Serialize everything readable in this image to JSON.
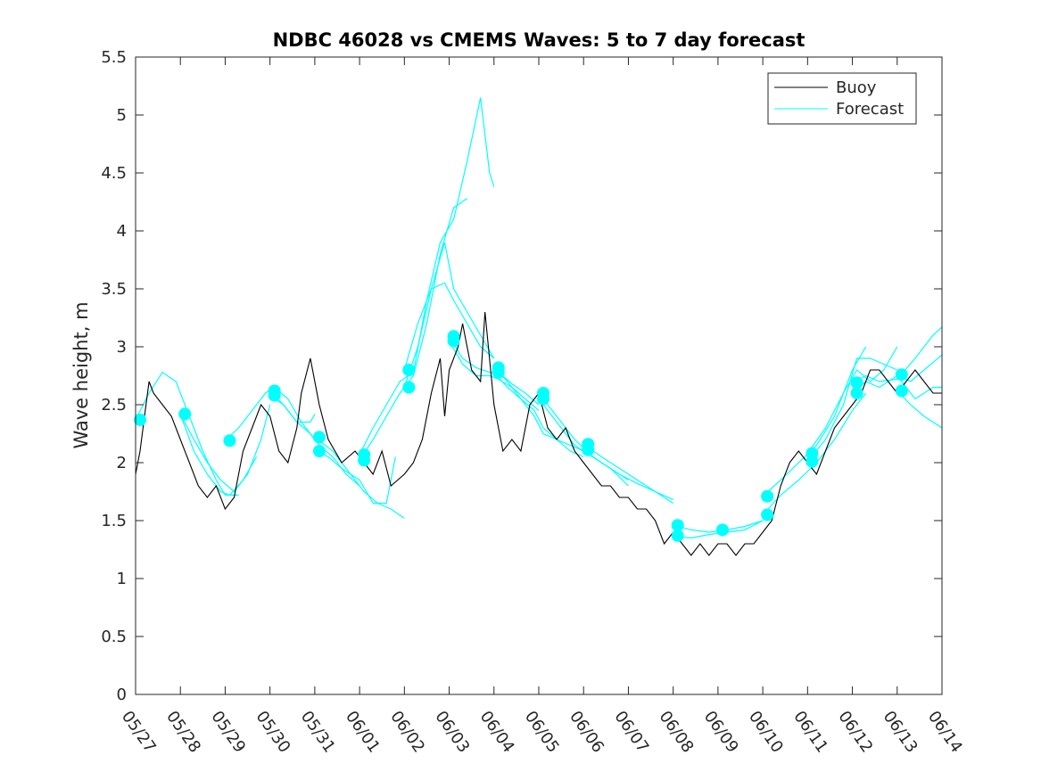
{
  "chart_data": {
    "type": "line",
    "title": "NDBC 46028 vs CMEMS Waves: 5 to 7 day forecast",
    "xlabel": "",
    "ylabel": "Wave height, m",
    "x_unit": "date",
    "xlim": [
      "05/27",
      "06/14"
    ],
    "ylim": [
      0,
      5.5
    ],
    "yticks": [
      "0",
      "0.5",
      "1",
      "1.5",
      "2",
      "2.5",
      "3",
      "3.5",
      "4",
      "4.5",
      "5",
      "5.5"
    ],
    "xticks": [
      "05/27",
      "05/28",
      "05/29",
      "05/30",
      "05/31",
      "06/01",
      "06/02",
      "06/03",
      "06/04",
      "06/05",
      "06/06",
      "06/07",
      "06/08",
      "06/09",
      "06/10",
      "06/11",
      "06/12",
      "06/13",
      "06/14"
    ],
    "grid": false,
    "legend": {
      "position": "top-right",
      "entries": [
        "Buoy",
        "Forecast"
      ]
    },
    "colors": {
      "buoy": "#000000",
      "forecast": "#00ffff",
      "axes": "#262626"
    },
    "series": [
      {
        "name": "Buoy",
        "x_days": [
          0,
          0.1,
          0.2,
          0.3,
          0.4,
          0.6,
          0.8,
          1.0,
          1.2,
          1.4,
          1.6,
          1.8,
          2.0,
          2.2,
          2.4,
          2.6,
          2.8,
          3.0,
          3.2,
          3.4,
          3.6,
          3.7,
          3.9,
          4.1,
          4.3,
          4.6,
          4.9,
          5.1,
          5.3,
          5.5,
          5.7,
          6.0,
          6.2,
          6.4,
          6.6,
          6.8,
          6.9,
          7.0,
          7.2,
          7.3,
          7.5,
          7.7,
          7.8,
          8.0,
          8.2,
          8.4,
          8.6,
          8.8,
          9.0,
          9.2,
          9.4,
          9.6,
          9.8,
          10.0,
          10.2,
          10.4,
          10.6,
          10.8,
          11.0,
          11.2,
          11.4,
          11.6,
          11.8,
          12.0,
          12.2,
          12.4,
          12.6,
          12.8,
          13.0,
          13.2,
          13.4,
          13.6,
          13.8,
          14.0,
          14.2,
          14.4,
          14.6,
          14.8,
          15.0,
          15.2,
          15.4,
          15.6,
          15.8,
          16.0,
          16.2,
          16.4,
          16.6,
          16.8,
          17.0,
          17.2,
          17.4,
          17.6,
          17.8,
          18.0
        ],
        "values": [
          1.9,
          2.1,
          2.4,
          2.7,
          2.6,
          2.5,
          2.4,
          2.2,
          2.0,
          1.8,
          1.7,
          1.8,
          1.6,
          1.7,
          2.1,
          2.3,
          2.5,
          2.4,
          2.1,
          2.0,
          2.3,
          2.6,
          2.9,
          2.5,
          2.2,
          2.0,
          2.1,
          2.0,
          1.9,
          2.1,
          1.8,
          1.9,
          2.0,
          2.2,
          2.6,
          2.9,
          2.4,
          2.8,
          3.0,
          3.2,
          2.8,
          2.7,
          3.3,
          2.5,
          2.1,
          2.2,
          2.1,
          2.5,
          2.6,
          2.3,
          2.2,
          2.3,
          2.1,
          2.0,
          1.9,
          1.8,
          1.8,
          1.7,
          1.7,
          1.6,
          1.6,
          1.5,
          1.3,
          1.4,
          1.3,
          1.2,
          1.3,
          1.2,
          1.3,
          1.3,
          1.2,
          1.3,
          1.3,
          1.4,
          1.5,
          1.8,
          2.0,
          2.1,
          2.0,
          1.9,
          2.1,
          2.3,
          2.4,
          2.5,
          2.6,
          2.8,
          2.8,
          2.7,
          2.6,
          2.7,
          2.8,
          2.7,
          2.6,
          2.6
        ]
      },
      {
        "name": "Forecast",
        "lines": [
          {
            "x_days": [
              0.0,
              0.3,
              0.6,
              0.9,
              1.2,
              1.5,
              1.8,
              2.0,
              2.3
            ],
            "values": [
              2.37,
              2.6,
              2.78,
              2.7,
              2.4,
              2.1,
              1.85,
              1.72,
              1.72
            ]
          },
          {
            "x_days": [
              1.0,
              1.3,
              1.6,
              1.9,
              2.2,
              2.5,
              2.8,
              3.0
            ],
            "values": [
              2.42,
              2.2,
              2.0,
              1.85,
              1.75,
              1.9,
              2.2,
              2.5
            ]
          },
          {
            "x_days": [
              1.0,
              1.3,
              1.6,
              1.9,
              2.1,
              2.4,
              2.7
            ],
            "values": [
              2.42,
              2.1,
              1.9,
              1.75,
              1.72,
              1.85,
              2.05
            ]
          },
          {
            "x_days": [
              2.0,
              2.3,
              2.6,
              2.9,
              3.1,
              3.4,
              3.7,
              4.0
            ],
            "values": [
              2.19,
              2.3,
              2.45,
              2.6,
              2.65,
              2.55,
              2.35,
              2.2
            ]
          },
          {
            "x_days": [
              3.0,
              3.3,
              3.6,
              3.9,
              4.1,
              4.4,
              4.7,
              5.0
            ],
            "values": [
              2.58,
              2.5,
              2.35,
              2.25,
              2.15,
              2.05,
              1.9,
              1.8
            ]
          },
          {
            "x_days": [
              3.0,
              3.3,
              3.6,
              3.9,
              4.0
            ],
            "values": [
              2.62,
              2.5,
              2.35,
              2.35,
              2.42
            ]
          },
          {
            "x_days": [
              4.0,
              4.4,
              4.8,
              5.1,
              5.4,
              5.7,
              6.0
            ],
            "values": [
              2.22,
              2.1,
              1.9,
              1.75,
              1.65,
              1.6,
              1.52
            ]
          },
          {
            "x_days": [
              4.0,
              4.3,
              4.6,
              5.0,
              5.3,
              5.6,
              5.8
            ],
            "values": [
              2.1,
              2.05,
              1.95,
              1.85,
              1.65,
              1.65,
              2.05
            ]
          },
          {
            "x_days": [
              5.0,
              5.3,
              5.6,
              5.9,
              6.2,
              6.5,
              6.8,
              7.1,
              7.4
            ],
            "values": [
              2.02,
              2.2,
              2.4,
              2.6,
              2.75,
              3.2,
              3.8,
              4.2,
              4.28
            ]
          },
          {
            "x_days": [
              5.0,
              5.3,
              5.6,
              5.9,
              6.2,
              6.5,
              6.8,
              7.1,
              7.4,
              7.7,
              7.9,
              8.0
            ],
            "values": [
              2.07,
              2.3,
              2.5,
              2.7,
              2.78,
              3.4,
              3.9,
              4.1,
              4.6,
              5.15,
              4.5,
              4.38
            ]
          },
          {
            "x_days": [
              6.0,
              6.3,
              6.6,
              6.9,
              7.1,
              7.4,
              7.7,
              8.0
            ],
            "values": [
              2.65,
              3.0,
              3.5,
              3.9,
              3.5,
              3.3,
              3.1,
              2.9
            ]
          },
          {
            "x_days": [
              6.0,
              6.3,
              6.6,
              6.9,
              7.1,
              7.4,
              7.7,
              8.0
            ],
            "values": [
              2.8,
              3.2,
              3.5,
              3.55,
              3.4,
              3.2,
              3.0,
              2.9
            ]
          },
          {
            "x_days": [
              7.0,
              7.3,
              7.6,
              7.9,
              8.1,
              8.4,
              8.7,
              9.0
            ],
            "values": [
              3.05,
              2.85,
              2.75,
              2.75,
              2.72,
              2.65,
              2.55,
              2.45
            ]
          },
          {
            "x_days": [
              7.0,
              7.3,
              7.6,
              7.9,
              8.1,
              8.4,
              8.7,
              9.0
            ],
            "values": [
              3.09,
              2.9,
              2.82,
              2.78,
              2.78,
              2.68,
              2.6,
              2.5
            ]
          },
          {
            "x_days": [
              8.0,
              8.3,
              8.6,
              8.9,
              9.1,
              9.4,
              9.7,
              10.0
            ],
            "values": [
              2.82,
              2.7,
              2.55,
              2.45,
              2.3,
              2.2,
              2.15,
              2.1
            ]
          },
          {
            "x_days": [
              8.0,
              8.3,
              8.6,
              8.9,
              9.1,
              9.4,
              9.7,
              10.0
            ],
            "values": [
              2.78,
              2.65,
              2.55,
              2.4,
              2.25,
              2.2,
              2.1,
              2.05
            ]
          },
          {
            "x_days": [
              9.0,
              9.4,
              9.8,
              10.2,
              10.6,
              11.0
            ],
            "values": [
              2.6,
              2.4,
              2.2,
              2.05,
              1.95,
              1.85
            ]
          },
          {
            "x_days": [
              9.0,
              9.4,
              9.8,
              10.2,
              10.6,
              11.0
            ],
            "values": [
              2.55,
              2.35,
              2.15,
              2.05,
              1.95,
              1.8
            ]
          },
          {
            "x_days": [
              10.0,
              10.4,
              10.8,
              11.2,
              11.6,
              12.0
            ],
            "values": [
              2.16,
              2.05,
              1.95,
              1.85,
              1.75,
              1.68
            ]
          },
          {
            "x_days": [
              10.0,
              10.4,
              10.8,
              11.2,
              11.6,
              12.0
            ],
            "values": [
              2.11,
              2.0,
              1.9,
              1.82,
              1.75,
              1.65
            ]
          },
          {
            "x_days": [
              12.0,
              12.4,
              12.8,
              13.2,
              13.6,
              14.0
            ],
            "values": [
              1.46,
              1.42,
              1.4,
              1.42,
              1.45,
              1.5
            ]
          },
          {
            "x_days": [
              12.0,
              12.4,
              12.8,
              13.2,
              13.6,
              14.0
            ],
            "values": [
              1.37,
              1.35,
              1.38,
              1.4,
              1.42,
              1.5
            ]
          },
          {
            "x_days": [
              14.0,
              14.4,
              14.8,
              15.2,
              15.6,
              16.0,
              16.3
            ],
            "values": [
              1.55,
              1.72,
              1.85,
              2.0,
              2.2,
              2.45,
              2.6
            ]
          },
          {
            "x_days": [
              14.0,
              14.4,
              14.8,
              15.2,
              15.6,
              16.0,
              16.3
            ],
            "values": [
              1.71,
              1.85,
              2.0,
              2.15,
              2.4,
              2.8,
              3.0
            ]
          },
          {
            "x_days": [
              15.0,
              15.4,
              15.8,
              16.1,
              16.4,
              16.7,
              17.0
            ],
            "values": [
              2.01,
              2.2,
              2.5,
              2.9,
              2.9,
              2.85,
              2.8
            ]
          },
          {
            "x_days": [
              15.0,
              15.4,
              15.8,
              16.1,
              16.4,
              16.7,
              17.0
            ],
            "values": [
              2.08,
              2.3,
              2.6,
              2.8,
              2.7,
              2.8,
              3.0
            ]
          },
          {
            "x_days": [
              16.0,
              16.3,
              16.6,
              17.0,
              17.4,
              17.8,
              18.0
            ],
            "values": [
              2.6,
              2.7,
              2.65,
              2.75,
              2.55,
              2.65,
              2.65
            ]
          },
          {
            "x_days": [
              16.0,
              16.3,
              16.6,
              17.0,
              17.4,
              17.8,
              18.0
            ],
            "values": [
              2.69,
              2.75,
              2.7,
              2.72,
              2.9,
              3.1,
              3.17
            ]
          },
          {
            "x_days": [
              17.0,
              17.3,
              17.6,
              18.0
            ],
            "values": [
              2.62,
              2.5,
              2.4,
              2.3
            ]
          },
          {
            "x_days": [
              17.0,
              17.3,
              17.6,
              18.0
            ],
            "values": [
              2.76,
              2.7,
              2.8,
              2.93
            ]
          }
        ],
        "markers": {
          "x_days": [
            0.1,
            1.1,
            2.1,
            3.1,
            3.1,
            4.1,
            4.1,
            5.1,
            5.1,
            6.1,
            6.1,
            7.1,
            7.1,
            8.1,
            8.1,
            9.1,
            9.1,
            10.1,
            10.1,
            12.1,
            12.1,
            13.1,
            14.1,
            14.1,
            15.1,
            15.1,
            16.1,
            16.1,
            17.1,
            17.1
          ],
          "values": [
            2.37,
            2.42,
            2.19,
            2.58,
            2.62,
            2.22,
            2.1,
            2.02,
            2.07,
            2.65,
            2.8,
            3.05,
            3.09,
            2.82,
            2.78,
            2.6,
            2.55,
            2.16,
            2.11,
            1.46,
            1.37,
            1.42,
            1.55,
            1.71,
            2.01,
            2.08,
            2.6,
            2.69,
            2.62,
            2.76
          ]
        }
      }
    ]
  }
}
